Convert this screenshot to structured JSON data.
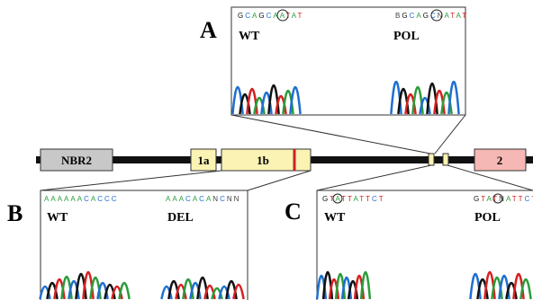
{
  "panels": {
    "a": {
      "label": "A",
      "left": {
        "name": "WT",
        "sequence": "GCAGCAATAT"
      },
      "right": {
        "name": "POL",
        "sequence": "BGCAGCNATAT"
      }
    },
    "b": {
      "label": "B",
      "left": {
        "name": "WT",
        "sequence": "AAAAAACACCC"
      },
      "right": {
        "name": "DEL",
        "sequence": "AAACACANCNN"
      }
    },
    "c": {
      "label": "C",
      "left": {
        "name": "WT",
        "sequence": "GTATTATTCT"
      },
      "right": {
        "name": "POL",
        "sequence": "GTATNATTCT"
      }
    }
  },
  "gene": {
    "nbr2": "NBR2",
    "exon_1a": "1a",
    "exon_1b": "1b",
    "exon_2": "2"
  }
}
